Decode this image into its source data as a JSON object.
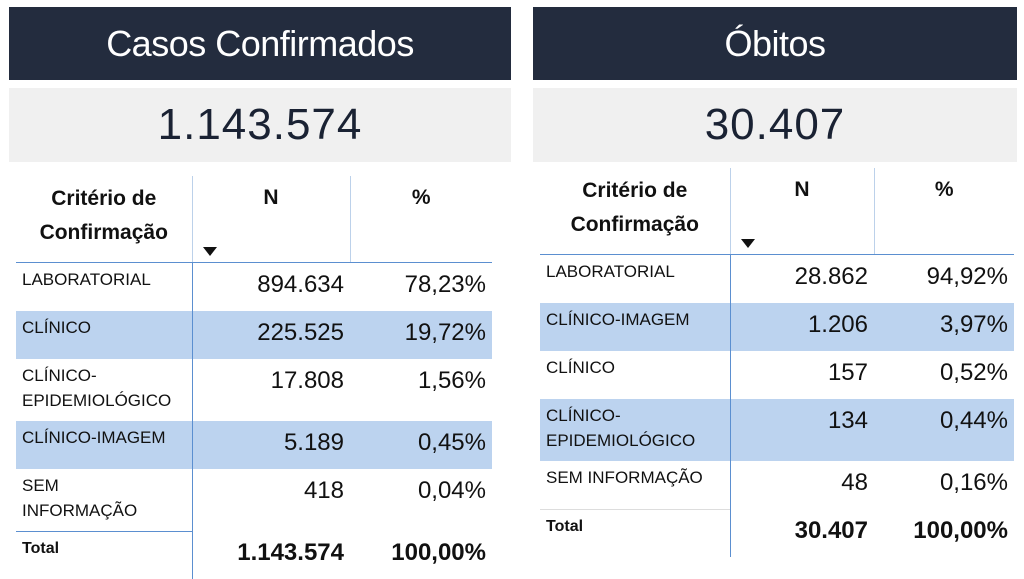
{
  "casos": {
    "title": "Casos Confirmados",
    "total": "1.143.574",
    "columns": {
      "criterio": "Critério de Confirmação",
      "n": "N",
      "pct": "%"
    },
    "rows": [
      {
        "label": "LABORATORIAL",
        "n": "894.634",
        "pct": "78,23%"
      },
      {
        "label": "CLÍNICO",
        "n": "225.525",
        "pct": "19,72%"
      },
      {
        "label": "CLÍNICO-\nEPIDEMIOLÓGICO",
        "n": "17.808",
        "pct": "1,56%"
      },
      {
        "label": "CLÍNICO-IMAGEM",
        "n": "5.189",
        "pct": "0,45%"
      },
      {
        "label": "SEM\nINFORMAÇÃO",
        "n": "418",
        "pct": "0,04%"
      }
    ],
    "total_row": {
      "label": "Total",
      "n": "1.143.574",
      "pct": "100,00%"
    }
  },
  "obitos": {
    "title": "Óbitos",
    "total": "30.407",
    "columns": {
      "criterio": "Critério de Confirmação",
      "n": "N",
      "pct": "%"
    },
    "rows": [
      {
        "label": "LABORATORIAL",
        "n": "28.862",
        "pct": "94,92%"
      },
      {
        "label": "CLÍNICO-IMAGEM",
        "n": "1.206",
        "pct": "3,97%"
      },
      {
        "label": "CLÍNICO",
        "n": "157",
        "pct": "0,52%"
      },
      {
        "label": "CLÍNICO-\nEPIDEMIOLÓGICO",
        "n": "134",
        "pct": "0,44%"
      },
      {
        "label": "SEM INFORMAÇÃO",
        "n": "48",
        "pct": "0,16%"
      }
    ],
    "total_row": {
      "label": "Total",
      "n": "30.407",
      "pct": "100,00%"
    }
  },
  "colors": {
    "header_bg": "#232c3e",
    "kpi_bg": "#f0f0f0",
    "band": "#bcd3ef",
    "accent_line": "#5b8fd0"
  },
  "icons": {
    "sort": "sort-descending-icon"
  }
}
